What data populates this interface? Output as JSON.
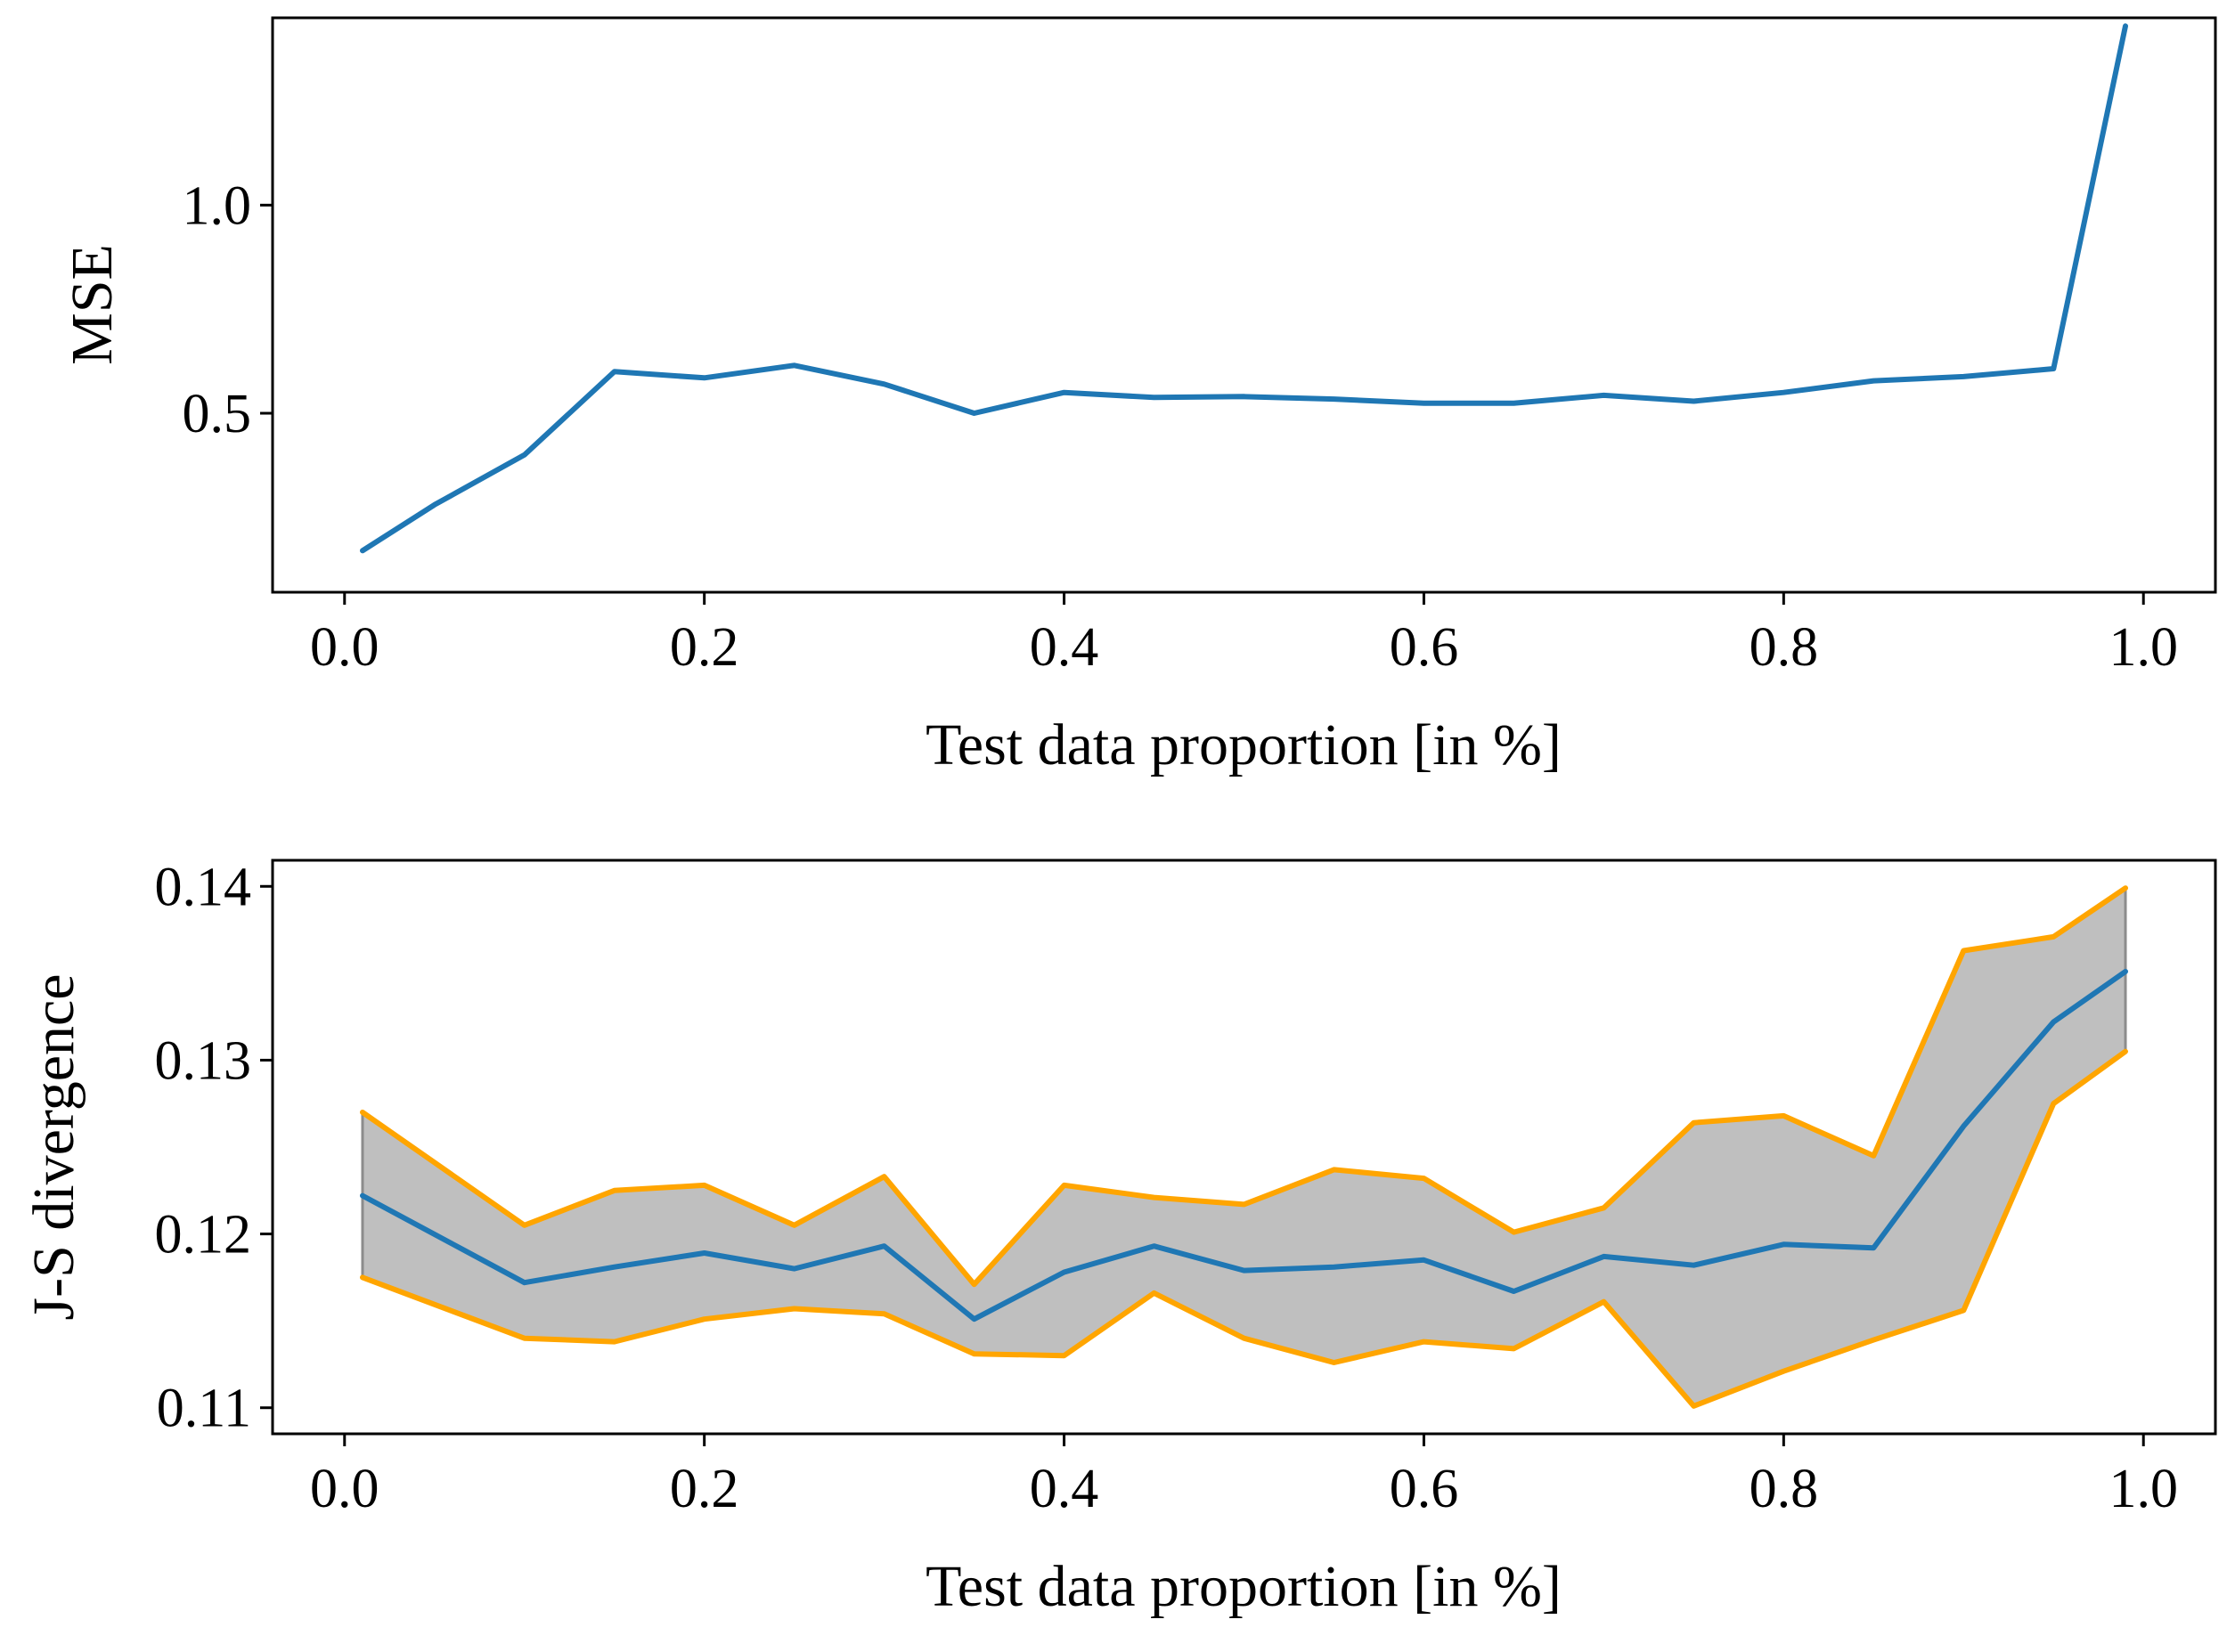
{
  "colors": {
    "line": "#1f77b4",
    "band_edge": "#ffa500",
    "band_fill": "#bfbfbf",
    "axes": "#000000"
  },
  "chart_data": [
    {
      "type": "line",
      "title": "",
      "xlabel": "Test data proportion [in %]",
      "ylabel": "MSE",
      "xlim": [
        -0.04,
        1.04
      ],
      "ylim": [
        0.07,
        1.45
      ],
      "xticks": [
        0.0,
        0.2,
        0.4,
        0.6,
        0.8,
        1.0
      ],
      "xtick_labels": [
        "0.0",
        "0.2",
        "0.4",
        "0.6",
        "0.8",
        "1.0"
      ],
      "yticks": [
        0.5,
        1.0
      ],
      "ytick_labels": [
        "0.5",
        "1.0"
      ],
      "grid": false,
      "series": [
        {
          "name": "MSE",
          "x": [
            0.01,
            0.05,
            0.1,
            0.15,
            0.2,
            0.25,
            0.3,
            0.35,
            0.4,
            0.45,
            0.5,
            0.55,
            0.6,
            0.65,
            0.7,
            0.75,
            0.8,
            0.85,
            0.9,
            0.95,
            0.99
          ],
          "y": [
            0.17,
            0.28,
            0.4,
            0.6,
            0.585,
            0.615,
            0.57,
            0.5,
            0.55,
            0.538,
            0.54,
            0.534,
            0.524,
            0.524,
            0.543,
            0.529,
            0.55,
            0.578,
            0.588,
            0.607,
            1.43
          ]
        }
      ]
    },
    {
      "type": "area",
      "title": "",
      "xlabel": "Test data proportion [in %]",
      "ylabel": "J-S divergence",
      "xlim": [
        -0.04,
        1.04
      ],
      "ylim": [
        0.1085,
        0.1415
      ],
      "xticks": [
        0.0,
        0.2,
        0.4,
        0.6,
        0.8,
        1.0
      ],
      "xtick_labels": [
        "0.0",
        "0.2",
        "0.4",
        "0.6",
        "0.8",
        "1.0"
      ],
      "yticks": [
        0.11,
        0.12,
        0.13,
        0.14
      ],
      "ytick_labels": [
        "0.11",
        "0.12",
        "0.13",
        "0.14"
      ],
      "grid": false,
      "x": [
        0.01,
        0.1,
        0.15,
        0.2,
        0.25,
        0.3,
        0.35,
        0.4,
        0.45,
        0.5,
        0.55,
        0.6,
        0.65,
        0.7,
        0.75,
        0.8,
        0.85,
        0.9,
        0.95,
        0.99
      ],
      "series": [
        {
          "name": "mean",
          "values": [
            0.1222,
            0.1172,
            0.1181,
            0.1189,
            0.118,
            0.1193,
            0.1151,
            0.1178,
            0.1193,
            0.1179,
            0.1181,
            0.1185,
            0.1167,
            0.1187,
            0.1182,
            0.1194,
            0.1192,
            0.1262,
            0.1322,
            0.1351
          ]
        },
        {
          "name": "upper",
          "values": [
            0.127,
            0.1205,
            0.1225,
            0.1228,
            0.1205,
            0.1233,
            0.1171,
            0.1228,
            0.1221,
            0.1217,
            0.1237,
            0.1232,
            0.1201,
            0.1215,
            0.1264,
            0.1268,
            0.1245,
            0.1363,
            0.1371,
            0.1399
          ]
        },
        {
          "name": "lower",
          "values": [
            0.1175,
            0.114,
            0.1138,
            0.1151,
            0.1157,
            0.1154,
            0.1131,
            0.113,
            0.1166,
            0.114,
            0.1126,
            0.1138,
            0.1134,
            0.1161,
            0.1101,
            0.1121,
            0.1139,
            0.1156,
            0.1275,
            0.1305
          ]
        }
      ]
    }
  ]
}
